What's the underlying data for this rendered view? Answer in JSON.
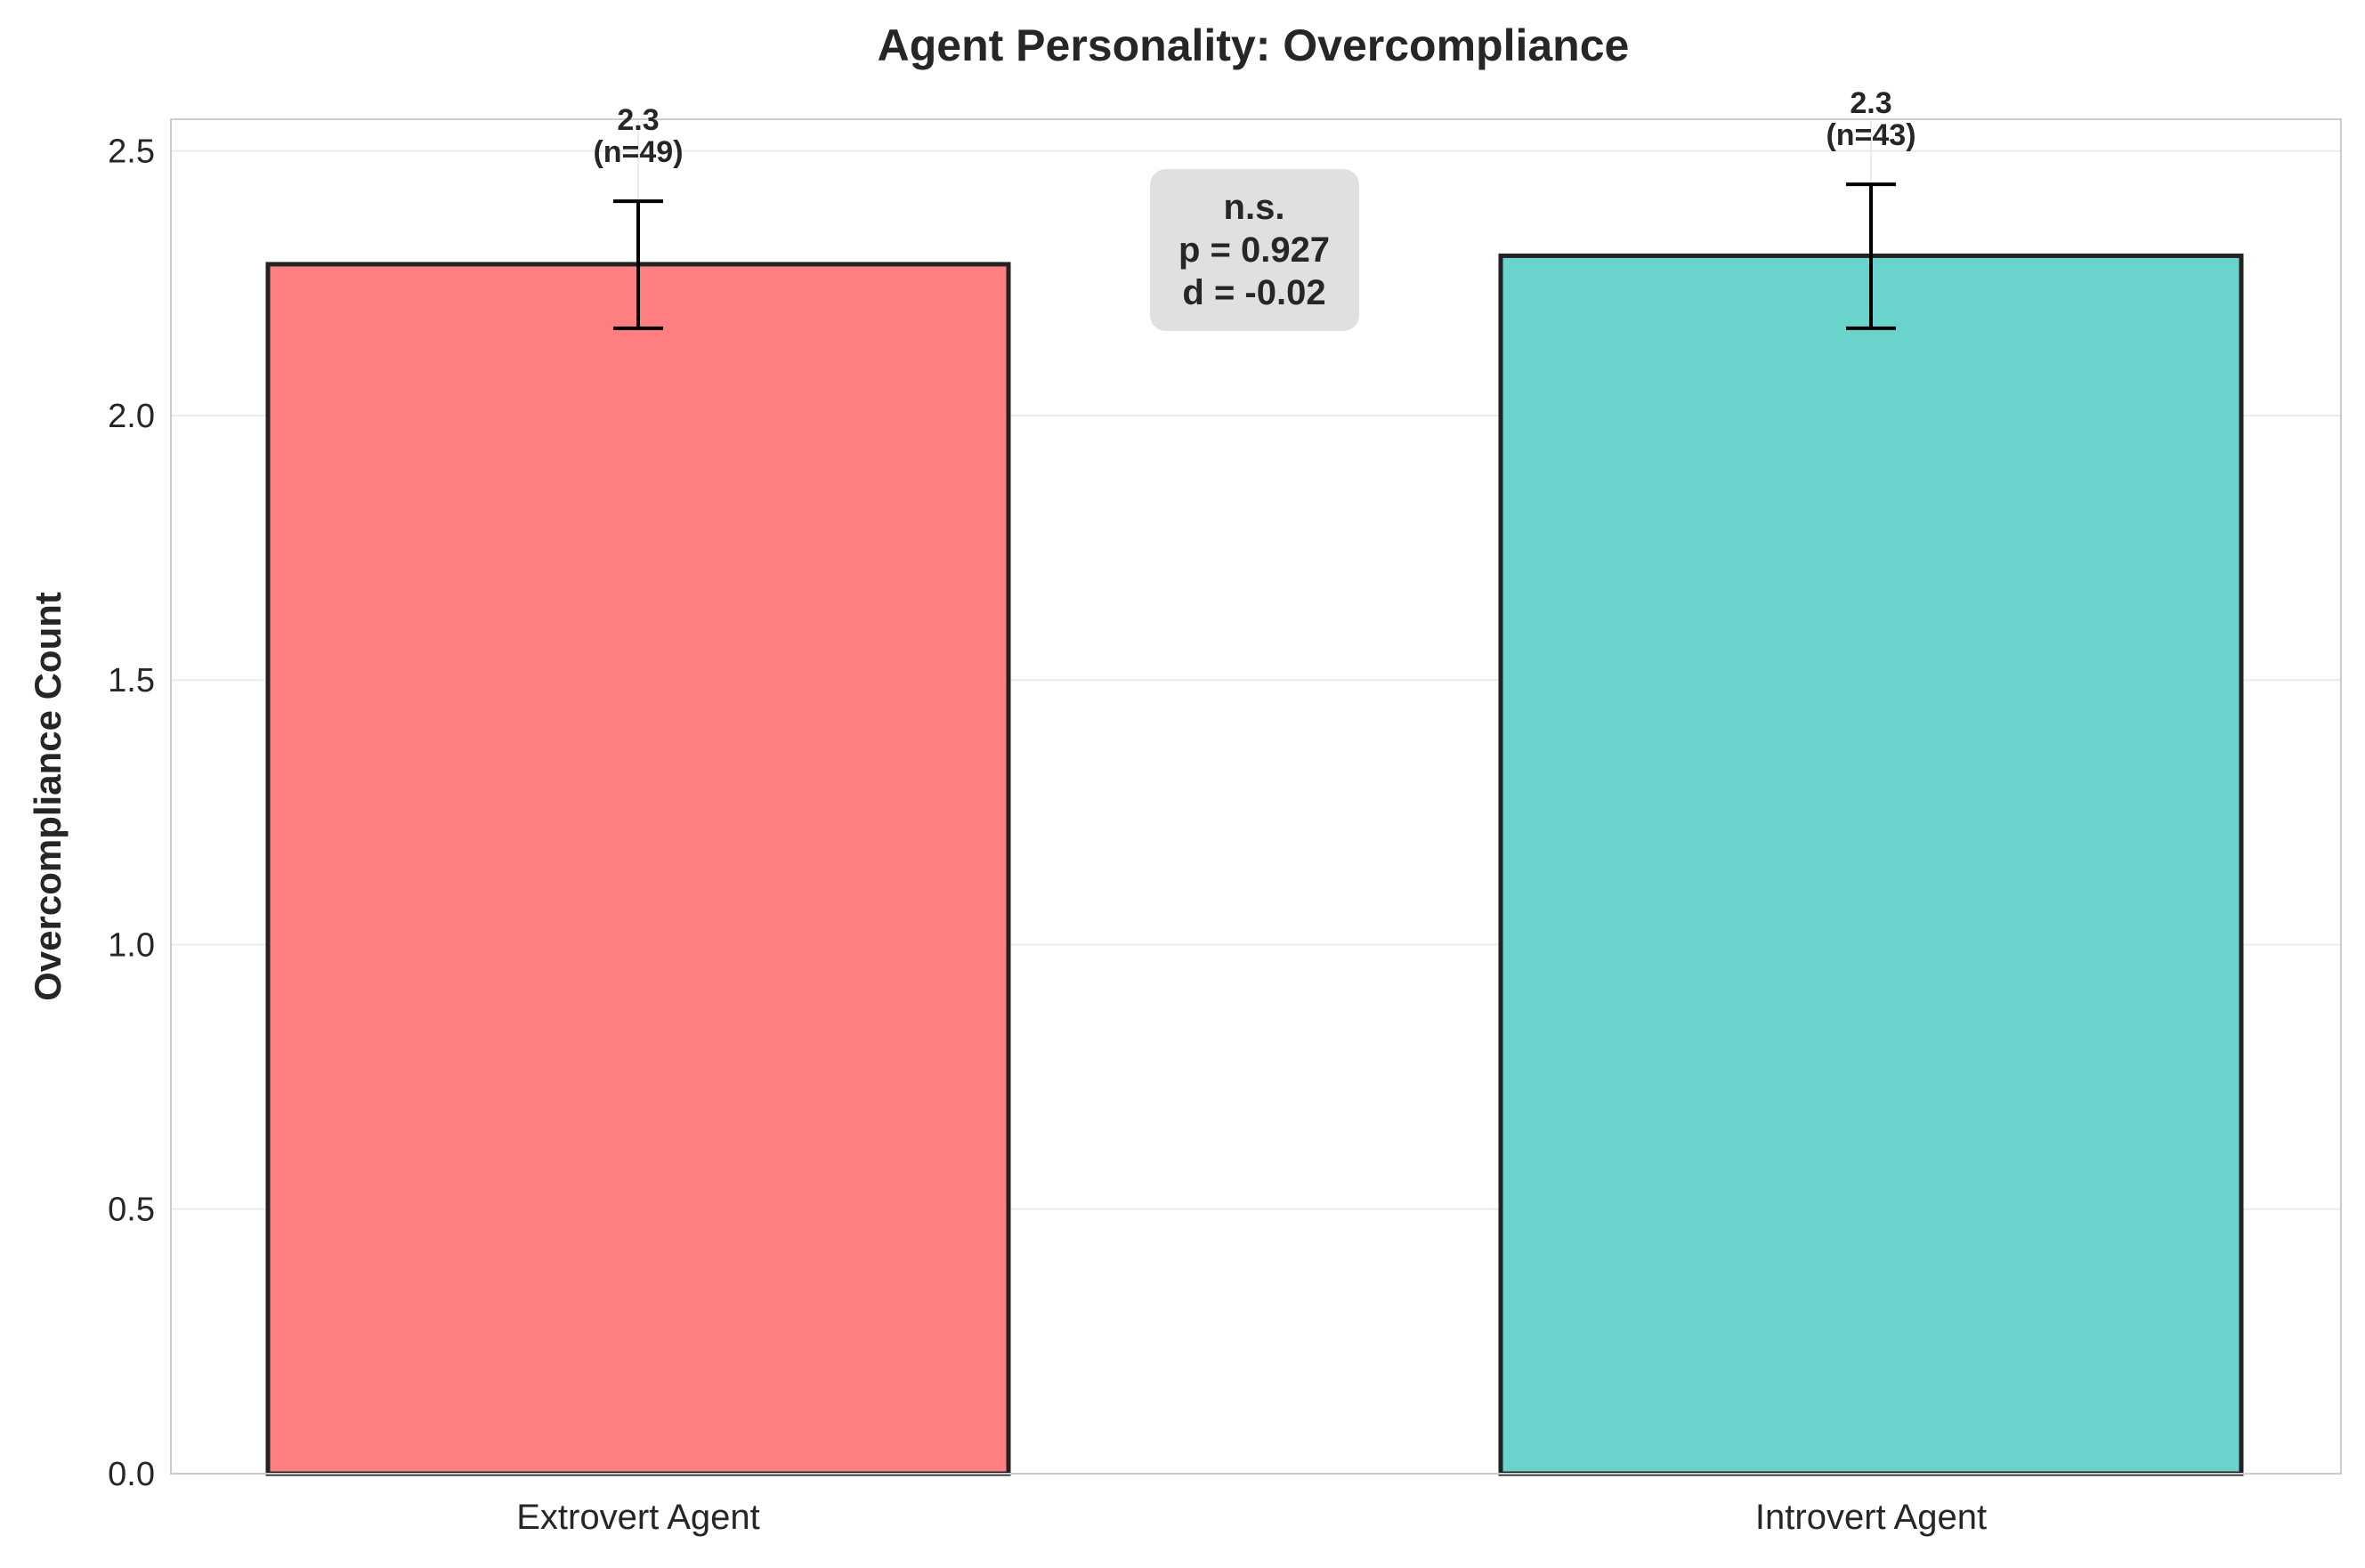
{
  "chart_data": {
    "type": "bar",
    "title": "Agent Personality: Overcompliance",
    "xlabel": "",
    "ylabel": "Overcompliance Count",
    "ylim": [
      0,
      2.56
    ],
    "yticks": [
      "0.0",
      "0.5",
      "1.0",
      "1.5",
      "2.0",
      "2.5"
    ],
    "grid": true,
    "categories": [
      "Extrovert Agent",
      "Introvert Agent"
    ],
    "values": [
      2.286,
      2.302
    ],
    "error_low": [
      2.165,
      2.165
    ],
    "error_high": [
      2.405,
      2.437
    ],
    "value_labels": [
      "2.3",
      "2.3"
    ],
    "n_labels": [
      "(n=49)",
      "(n=43)"
    ],
    "colors": [
      "#ff7f80",
      "#6ad3cb"
    ],
    "annotation": {
      "lines": [
        "n.s.",
        "p = 0.927",
        "d = -0.02"
      ],
      "background": "#e0e0e0"
    }
  }
}
